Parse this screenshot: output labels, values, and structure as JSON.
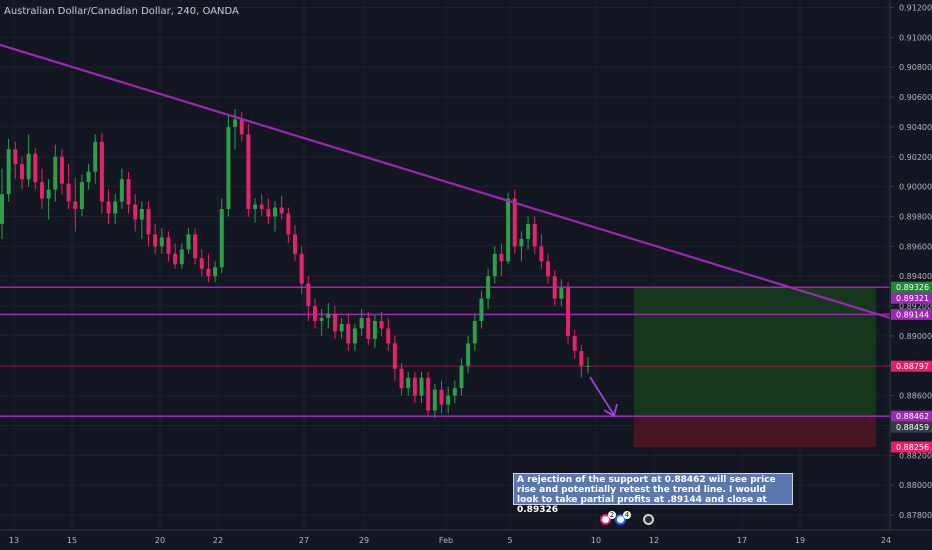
{
  "header": {
    "title": "Australian Dollar/Canadian Dollar, 240, OANDA"
  },
  "annotation": {
    "text": "A rejection of the support at 0.88462 will see price rise and potentially retest the trend line.  I would look to take partial profits at .89144 and close at 0.89326"
  },
  "events": [
    {
      "icon": "calendar-event-icon",
      "badge": "2"
    },
    {
      "icon": "calendar-event-icon",
      "badge": "4"
    },
    {
      "icon": "globe-event-icon"
    }
  ],
  "chart_data": {
    "type": "candlestick",
    "title": "Australian Dollar/Canadian Dollar, 240, OANDA",
    "ylim": [
      0.877,
      0.9125
    ],
    "y_ticks": [
      "0.91200",
      "0.91000",
      "0.90800",
      "0.90600",
      "0.90400",
      "0.90200",
      "0.90000",
      "0.89800",
      "0.89600",
      "0.89400",
      "0.89200",
      "0.89000",
      "0.88800",
      "0.88600",
      "0.88400",
      "0.88200",
      "0.88000",
      "0.87800"
    ],
    "x_ticks": [
      "13",
      "15",
      "20",
      "22",
      "27",
      "29",
      "Feb",
      "5",
      "10",
      "12",
      "17",
      "19",
      "24"
    ],
    "price_tags": [
      {
        "label": "0.89326",
        "value": 0.89326,
        "color": "#1e8a37"
      },
      {
        "label": "0.89321",
        "value": 0.89321,
        "color": "#9c27b0"
      },
      {
        "label": "0.89144",
        "value": 0.89144,
        "color": "#9c27b0"
      },
      {
        "label": "0.88797",
        "value": 0.88797,
        "color": "#e91e63"
      },
      {
        "label": "0.88462",
        "value": 0.88462,
        "color": "#9c27b0"
      },
      {
        "label": "0.88459",
        "value": 0.88459,
        "color": "#363a45"
      },
      {
        "label": "0.88256",
        "value": 0.88256,
        "color": "#e91e63"
      }
    ],
    "horizontal_lines": [
      0.89326,
      0.89144,
      0.88462
    ],
    "current_price": 0.88797,
    "trendline": {
      "from": 0.9095,
      "to": 0.8912
    },
    "position": {
      "type": "long",
      "entry": 0.88462,
      "target": 0.89326,
      "stop": 0.88256
    },
    "candles": [
      [
        0.8975,
        0.9012,
        0.8965,
        0.8995
      ],
      [
        0.8995,
        0.9032,
        0.899,
        0.9025
      ],
      [
        0.9025,
        0.903,
        0.9005,
        0.9015
      ],
      [
        0.9015,
        0.902,
        0.8998,
        0.9005
      ],
      [
        0.9005,
        0.9035,
        0.9,
        0.9022
      ],
      [
        0.9022,
        0.9026,
        0.8998,
        0.9003
      ],
      [
        0.9003,
        0.9012,
        0.8985,
        0.8992
      ],
      [
        0.8992,
        0.9005,
        0.8978,
        0.8998
      ],
      [
        0.8998,
        0.9028,
        0.899,
        0.902
      ],
      [
        0.902,
        0.9025,
        0.8995,
        0.9002
      ],
      [
        0.9002,
        0.9015,
        0.8985,
        0.899
      ],
      [
        0.899,
        0.9006,
        0.897,
        0.8985
      ],
      [
        0.8985,
        0.9008,
        0.898,
        0.9003
      ],
      [
        0.9003,
        0.9015,
        0.8998,
        0.901
      ],
      [
        0.901,
        0.9035,
        0.9002,
        0.903
      ],
      [
        0.903,
        0.9036,
        0.8982,
        0.899
      ],
      [
        0.899,
        0.8998,
        0.8975,
        0.8982
      ],
      [
        0.8982,
        0.8995,
        0.8975,
        0.899
      ],
      [
        0.899,
        0.9012,
        0.8985,
        0.9005
      ],
      [
        0.9005,
        0.901,
        0.8982,
        0.8988
      ],
      [
        0.8988,
        0.8995,
        0.897,
        0.8978
      ],
      [
        0.8978,
        0.899,
        0.8965,
        0.8985
      ],
      [
        0.8985,
        0.899,
        0.896,
        0.8968
      ],
      [
        0.8968,
        0.8975,
        0.8955,
        0.896
      ],
      [
        0.896,
        0.8972,
        0.8955,
        0.8966
      ],
      [
        0.8966,
        0.897,
        0.895,
        0.8955
      ],
      [
        0.8955,
        0.8962,
        0.8945,
        0.8948
      ],
      [
        0.8948,
        0.8962,
        0.8945,
        0.8958
      ],
      [
        0.8958,
        0.8972,
        0.8955,
        0.8968
      ],
      [
        0.8968,
        0.8972,
        0.8948,
        0.8952
      ],
      [
        0.8952,
        0.8958,
        0.894,
        0.8945
      ],
      [
        0.8945,
        0.8955,
        0.8936,
        0.894
      ],
      [
        0.894,
        0.895,
        0.8936,
        0.8946
      ],
      [
        0.8946,
        0.8992,
        0.8942,
        0.8985
      ],
      [
        0.8985,
        0.9048,
        0.898,
        0.904
      ],
      [
        0.904,
        0.9052,
        0.9025,
        0.9045
      ],
      [
        0.9045,
        0.905,
        0.903,
        0.9035
      ],
      [
        0.9035,
        0.9042,
        0.898,
        0.8985
      ],
      [
        0.8985,
        0.8992,
        0.8976,
        0.8988
      ],
      [
        0.8988,
        0.8995,
        0.898,
        0.8985
      ],
      [
        0.8985,
        0.8992,
        0.8975,
        0.898
      ],
      [
        0.898,
        0.899,
        0.897,
        0.8986
      ],
      [
        0.8986,
        0.8994,
        0.8978,
        0.8982
      ],
      [
        0.8982,
        0.8986,
        0.8962,
        0.8968
      ],
      [
        0.8968,
        0.8974,
        0.895,
        0.8955
      ],
      [
        0.8955,
        0.896,
        0.8928,
        0.8935
      ],
      [
        0.8935,
        0.894,
        0.891,
        0.892
      ],
      [
        0.892,
        0.8925,
        0.8905,
        0.891
      ],
      [
        0.891,
        0.8918,
        0.89,
        0.8912
      ],
      [
        0.8912,
        0.8922,
        0.8905,
        0.8915
      ],
      [
        0.8915,
        0.892,
        0.8898,
        0.8903
      ],
      [
        0.8903,
        0.8912,
        0.8898,
        0.8908
      ],
      [
        0.8908,
        0.8915,
        0.889,
        0.8895
      ],
      [
        0.8895,
        0.8908,
        0.889,
        0.8905
      ],
      [
        0.8905,
        0.8918,
        0.89,
        0.8912
      ],
      [
        0.8912,
        0.8916,
        0.8894,
        0.8898
      ],
      [
        0.8898,
        0.8914,
        0.8892,
        0.891
      ],
      [
        0.891,
        0.8916,
        0.89,
        0.8905
      ],
      [
        0.8905,
        0.8912,
        0.889,
        0.8895
      ],
      [
        0.8895,
        0.89,
        0.887,
        0.8878
      ],
      [
        0.8878,
        0.8882,
        0.886,
        0.8865
      ],
      [
        0.8865,
        0.8876,
        0.886,
        0.8872
      ],
      [
        0.8872,
        0.8876,
        0.8855,
        0.886
      ],
      [
        0.886,
        0.8876,
        0.8855,
        0.8872
      ],
      [
        0.8872,
        0.8876,
        0.8846,
        0.885
      ],
      [
        0.885,
        0.8868,
        0.8845,
        0.8864
      ],
      [
        0.8864,
        0.887,
        0.8848,
        0.8854
      ],
      [
        0.8854,
        0.8866,
        0.8848,
        0.886
      ],
      [
        0.886,
        0.887,
        0.8855,
        0.8865
      ],
      [
        0.8865,
        0.8885,
        0.886,
        0.888
      ],
      [
        0.888,
        0.89,
        0.8875,
        0.8895
      ],
      [
        0.8895,
        0.8915,
        0.889,
        0.891
      ],
      [
        0.891,
        0.893,
        0.8905,
        0.8925
      ],
      [
        0.8925,
        0.8945,
        0.8918,
        0.894
      ],
      [
        0.894,
        0.896,
        0.8935,
        0.8955
      ],
      [
        0.8955,
        0.8962,
        0.894,
        0.895
      ],
      [
        0.895,
        0.8996,
        0.8948,
        0.8992
      ],
      [
        0.8992,
        0.8998,
        0.8955,
        0.896
      ],
      [
        0.896,
        0.897,
        0.895,
        0.8965
      ],
      [
        0.8965,
        0.898,
        0.8958,
        0.8975
      ],
      [
        0.8975,
        0.898,
        0.8955,
        0.896
      ],
      [
        0.896,
        0.8968,
        0.8945,
        0.895
      ],
      [
        0.895,
        0.8955,
        0.8935,
        0.894
      ],
      [
        0.894,
        0.8944,
        0.892,
        0.8925
      ],
      [
        0.8925,
        0.8938,
        0.892,
        0.8932
      ],
      [
        0.8932,
        0.8936,
        0.8895,
        0.89
      ],
      [
        0.89,
        0.8904,
        0.8885,
        0.889
      ],
      [
        0.889,
        0.8894,
        0.8872,
        0.888
      ],
      [
        0.888,
        0.8886,
        0.8875,
        0.888
      ]
    ]
  }
}
